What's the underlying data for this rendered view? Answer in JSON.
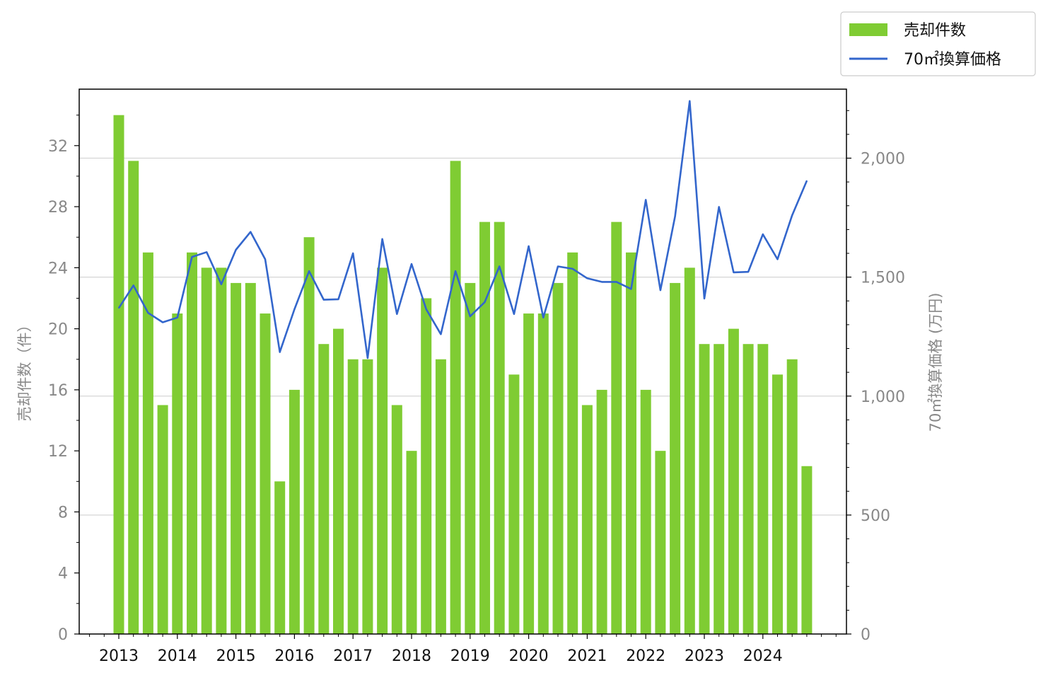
{
  "chart_data": {
    "type": "bar",
    "categories": [
      "2013 Q1",
      "2013 Q2",
      "2013 Q3",
      "2013 Q4",
      "2014 Q1",
      "2014 Q2",
      "2014 Q3",
      "2014 Q4",
      "2015 Q1",
      "2015 Q2",
      "2015 Q3",
      "2015 Q4",
      "2016 Q1",
      "2016 Q2",
      "2016 Q3",
      "2016 Q4",
      "2017 Q1",
      "2017 Q2",
      "2017 Q3",
      "2017 Q4",
      "2018 Q1",
      "2018 Q2",
      "2018 Q3",
      "2018 Q4",
      "2019 Q1",
      "2019 Q2",
      "2019 Q3",
      "2019 Q4",
      "2020 Q1",
      "2020 Q2",
      "2020 Q3",
      "2020 Q4",
      "2021 Q1",
      "2021 Q2",
      "2021 Q3",
      "2021 Q4",
      "2022 Q1",
      "2022 Q2",
      "2022 Q3",
      "2022 Q4",
      "2023 Q1",
      "2023 Q2",
      "2023 Q3",
      "2023 Q4",
      "2024 Q1",
      "2024 Q2",
      "2024 Q3",
      "2024 Q4"
    ],
    "series": [
      {
        "name": "売却件数",
        "type": "bar",
        "axis": "left",
        "color": "#7fcc33",
        "values": [
          34,
          31,
          25,
          15,
          21,
          25,
          24,
          24,
          23,
          23,
          21,
          10,
          16,
          26,
          19,
          20,
          18,
          18,
          24,
          15,
          12,
          22,
          18,
          31,
          23,
          27,
          27,
          17,
          21,
          21,
          23,
          25,
          15,
          16,
          27,
          25,
          16,
          12,
          23,
          24,
          19,
          19,
          20,
          19,
          19,
          17,
          18,
          11
        ]
      },
      {
        "name": "70㎡換算価格",
        "type": "line",
        "axis": "right",
        "color": "#3366cc",
        "values": [
          1370,
          1465,
          1350,
          1310,
          1330,
          1585,
          1605,
          1470,
          1615,
          1690,
          1575,
          1185,
          1365,
          1525,
          1405,
          1407,
          1600,
          1160,
          1660,
          1345,
          1555,
          1365,
          1260,
          1525,
          1335,
          1395,
          1545,
          1345,
          1630,
          1330,
          1545,
          1535,
          1495,
          1480,
          1480,
          1450,
          1825,
          1445,
          1755,
          2240,
          1410,
          1795,
          1520,
          1522,
          1680,
          1575,
          1760,
          1905
        ]
      }
    ],
    "x_tick_labels": [
      "2013",
      "2014",
      "2015",
      "2016",
      "2017",
      "2018",
      "2019",
      "2020",
      "2021",
      "2022",
      "2023",
      "2024"
    ],
    "y_left": {
      "label": "売却件数（件）",
      "ticks": [
        "0",
        "4",
        "8",
        "12",
        "16",
        "20",
        "24",
        "28",
        "32"
      ],
      "lim": [
        0,
        35.7
      ]
    },
    "y_right": {
      "label": "70㎡換算価格 (万円)",
      "ticks": [
        "0",
        "500",
        "1,000",
        "1,500",
        "2,000"
      ],
      "lim": [
        0,
        2290
      ]
    },
    "legend": {
      "placement": "top-right, outside plot"
    },
    "grid": true
  }
}
